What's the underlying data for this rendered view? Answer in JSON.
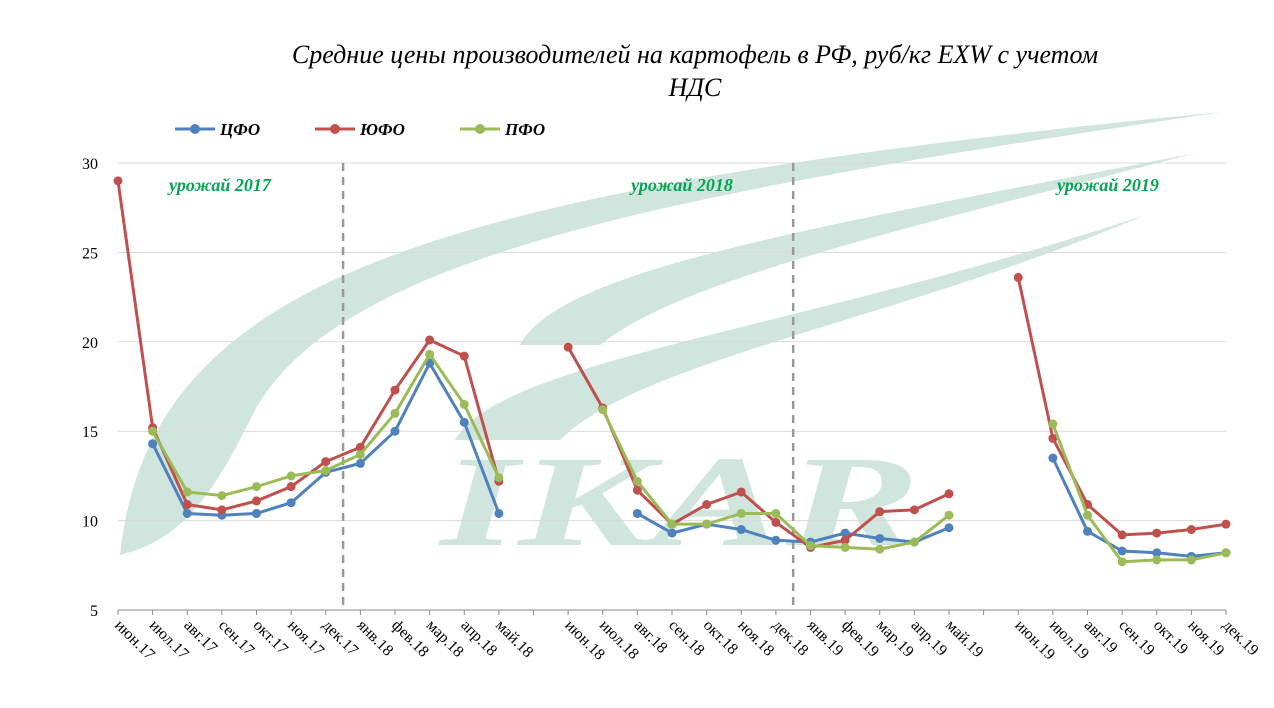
{
  "chart_data": {
    "type": "line",
    "title_line1": "Средние цены производителей на картофель в РФ, руб/кг EXW с учетом",
    "title_line2": "НДС",
    "ylim": [
      5,
      30
    ],
    "yticks": [
      "5",
      "10",
      "15",
      "20",
      "25",
      "30"
    ],
    "grid": true,
    "legend_position": "top-left",
    "categories": [
      "июн.17",
      "июл.17",
      "авг.17",
      "сен.17",
      "окт.17",
      "ноя.17",
      "дек.17",
      "янв.18",
      "фев.18",
      "мар.18",
      "апр.18",
      "май.18",
      "",
      "июн.18",
      "июл.18",
      "авг.18",
      "сен.18",
      "окт.18",
      "ноя.18",
      "дек.18",
      "янв.19",
      "фев.19",
      "мар.19",
      "апр.19",
      "май.19",
      "",
      "июн.19",
      "июл.19",
      "авг.19",
      "сен.19",
      "окт.19",
      "ноя.19",
      "дек.19"
    ],
    "harvest_labels": [
      "урожай 2017",
      "урожай 2018",
      "урожай 2019"
    ],
    "separators_after": [
      "дек.17",
      "дек.18"
    ],
    "separator_color": "#999999",
    "harvest_color": "#00a651",
    "watermark": {
      "text": "IKAR",
      "color": "#cfe5dd"
    },
    "series": [
      {
        "name": "ЦФО",
        "color": "#4f81bd",
        "values": [
          null,
          14.3,
          10.4,
          10.3,
          10.4,
          11.0,
          12.7,
          13.2,
          15.0,
          18.8,
          15.5,
          10.4,
          null,
          null,
          null,
          10.4,
          9.3,
          9.8,
          9.5,
          8.9,
          8.8,
          9.3,
          9.0,
          8.8,
          9.6,
          null,
          null,
          13.5,
          9.4,
          8.3,
          8.2,
          8.0,
          8.2
        ]
      },
      {
        "name": "ЮФО",
        "color": "#c0504d",
        "values": [
          29.0,
          15.2,
          10.9,
          10.6,
          11.1,
          11.9,
          13.3,
          14.1,
          17.3,
          20.1,
          19.2,
          12.2,
          null,
          19.7,
          16.3,
          11.7,
          9.8,
          10.9,
          11.6,
          9.9,
          8.5,
          8.9,
          10.5,
          10.6,
          11.5,
          null,
          23.6,
          14.6,
          10.9,
          9.2,
          9.3,
          9.5,
          9.8
        ]
      },
      {
        "name": "ПФО",
        "color": "#9bbb59",
        "values": [
          null,
          15.0,
          11.6,
          11.4,
          11.9,
          12.5,
          12.8,
          13.7,
          16.0,
          19.3,
          16.5,
          12.4,
          null,
          null,
          16.2,
          12.2,
          9.8,
          9.8,
          10.4,
          10.4,
          8.6,
          8.5,
          8.4,
          8.8,
          10.3,
          null,
          null,
          15.4,
          10.3,
          7.7,
          7.8,
          7.8,
          8.2
        ]
      }
    ]
  }
}
